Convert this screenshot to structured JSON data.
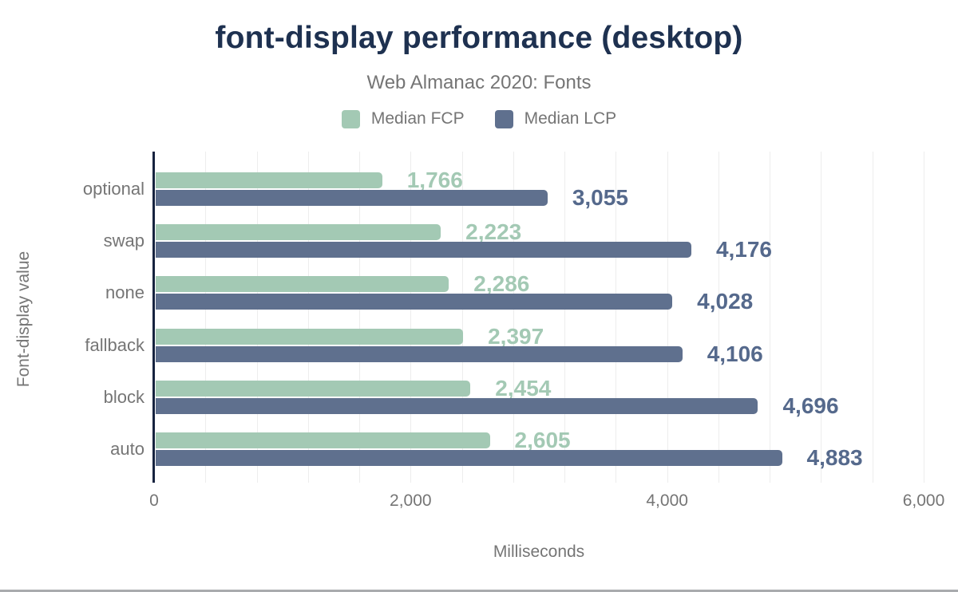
{
  "chart_data": {
    "type": "bar",
    "orientation": "horizontal",
    "title": "font-display performance (desktop)",
    "subtitle": "Web Almanac 2020: Fonts",
    "xlabel": "Milliseconds",
    "ylabel": "Font-display value",
    "categories": [
      "optional",
      "swap",
      "none",
      "fallback",
      "block",
      "auto"
    ],
    "series": [
      {
        "name": "Median FCP",
        "color": "#a3c9b4",
        "label_color": "#a3c9b4",
        "values": [
          1766,
          2223,
          2286,
          2397,
          2454,
          2605
        ],
        "labels": [
          "1,766",
          "2,223",
          "2,286",
          "2,397",
          "2,454",
          "2,605"
        ]
      },
      {
        "name": "Median LCP",
        "color": "#5f708e",
        "label_color": "#55698c",
        "values": [
          3055,
          4176,
          4028,
          4106,
          4696,
          4883
        ],
        "labels": [
          "3,055",
          "4,176",
          "4,028",
          "4,106",
          "4,696",
          "4,883"
        ]
      }
    ],
    "xlim": [
      0,
      6000
    ],
    "xticks": [
      0,
      2000,
      4000,
      6000
    ],
    "xtick_labels": [
      "0",
      "2,000",
      "4,000",
      "6,000"
    ],
    "minor_grid_step_ms": 400,
    "grid": true,
    "legend_position": "top"
  },
  "colors": {
    "title": "#1e3150",
    "muted_text": "#757575",
    "axis_line": "#16233f",
    "gridline": "#ededed",
    "bottom_border": "#a9abae",
    "background": "#ffffff"
  }
}
